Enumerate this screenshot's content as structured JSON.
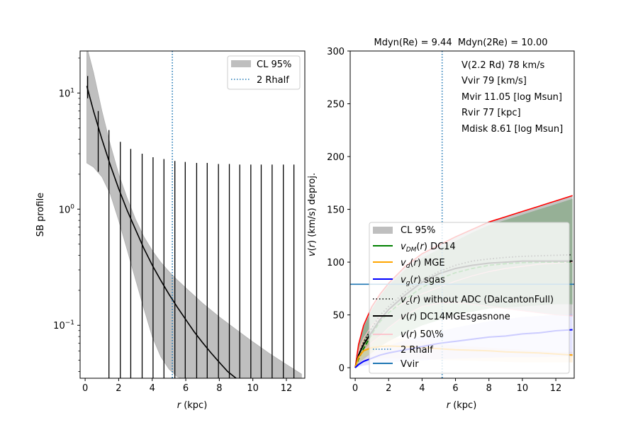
{
  "chart_data": [
    {
      "type": "line",
      "panel": "left",
      "title": "",
      "xlabel": "r (kpc)",
      "xlabel_italic_part": "r",
      "ylabel": "SB profile",
      "yscale": "log",
      "xlim": [
        -0.3,
        13.1
      ],
      "ylim": [
        0.035,
        23
      ],
      "xticks": [
        0,
        2,
        4,
        6,
        8,
        10,
        12
      ],
      "yticks": [
        {
          "value": 10,
          "base": "10",
          "exp": "1"
        },
        {
          "value": 1,
          "base": "10",
          "exp": "0"
        },
        {
          "value": 0.1,
          "base": "10",
          "exp": "−1"
        }
      ],
      "legend": {
        "position": "top-right",
        "entries": [
          {
            "label": "CL 95%",
            "style": "patch",
            "color": "#bfbfbf"
          },
          {
            "label": "2 Rhalf",
            "style": "dotted",
            "color": "#1f77b4"
          }
        ]
      },
      "model": {
        "name": "SB model",
        "color": "#000000",
        "x": [
          0.1,
          0.5,
          1.0,
          1.5,
          2.0,
          2.5,
          3.0,
          3.5,
          4.0,
          4.5,
          5.0,
          5.5,
          6.0,
          6.5,
          7.0,
          7.5,
          8.0,
          8.5,
          9.0,
          9.2
        ],
        "y": [
          11.5,
          7.0,
          4.0,
          2.4,
          1.5,
          0.98,
          0.67,
          0.46,
          0.33,
          0.245,
          0.185,
          0.143,
          0.112,
          0.088,
          0.071,
          0.058,
          0.048,
          0.04,
          0.035,
          0.033
        ]
      },
      "band": {
        "name": "CL 95%",
        "color": "#bfbfbf",
        "x": [
          0.1,
          0.5,
          1.0,
          1.5,
          2.0,
          2.5,
          3.0,
          3.5,
          4.0,
          4.5,
          5.0,
          5.5,
          6.0,
          7.0,
          8.0,
          9.0,
          10.0,
          11.0,
          12.0,
          12.9
        ],
        "upper": [
          25,
          15,
          7.0,
          3.6,
          2.0,
          1.25,
          0.82,
          0.58,
          0.44,
          0.35,
          0.29,
          0.245,
          0.21,
          0.155,
          0.118,
          0.092,
          0.072,
          0.057,
          0.046,
          0.038
        ],
        "lower": [
          2.5,
          2.3,
          1.9,
          1.35,
          0.8,
          0.45,
          0.25,
          0.14,
          0.08,
          0.054,
          0.042,
          0.036,
          0.034,
          0.034,
          0.034,
          0.034,
          0.034,
          0.034,
          0.034,
          0.034
        ]
      },
      "errorbars": {
        "name": "data error bars",
        "color": "#000000",
        "x": [
          0.15,
          0.78,
          1.42,
          2.1,
          2.72,
          3.4,
          4.05,
          4.7,
          5.35,
          5.97,
          6.65,
          7.28,
          7.95,
          8.6,
          9.22,
          9.88,
          10.5,
          11.15,
          11.82,
          12.45
        ],
        "upper": [
          14,
          7.0,
          4.8,
          3.8,
          3.3,
          3.0,
          2.8,
          2.7,
          2.6,
          2.55,
          2.5,
          2.5,
          2.45,
          2.45,
          2.42,
          2.42,
          2.42,
          2.42,
          2.42,
          2.42
        ],
        "lower": [
          9,
          2.1,
          0.035,
          0.035,
          0.035,
          0.035,
          0.035,
          0.035,
          0.035,
          0.035,
          0.035,
          0.035,
          0.035,
          0.035,
          0.035,
          0.035,
          0.035,
          0.035,
          0.035,
          0.035
        ]
      },
      "vline": {
        "name": "2 Rhalf",
        "x": 5.2,
        "color": "#1f77b4",
        "style": "dotted"
      }
    },
    {
      "type": "line",
      "panel": "right",
      "title": "Mdyn(Re) = 9.44  Mdyn(2Re) = 10.00",
      "xlabel": "r (kpc)",
      "xlabel_italic_part": "r",
      "ylabel": "v(r) (km/s) deproj.",
      "xlim": [
        -0.3,
        13.1
      ],
      "ylim": [
        -10,
        300
      ],
      "xticks": [
        0,
        2,
        4,
        6,
        8,
        10,
        12
      ],
      "yticks": [
        0,
        50,
        100,
        150,
        200,
        250,
        300
      ],
      "annotations": [
        "V(2.2 Rd) 78 km/s",
        "Vvir 79 [km/s]",
        "Mvir 11.05 [log Msun]",
        "Rvir 77 [kpc]",
        "Mdisk 8.61 [log Msun]"
      ],
      "legend": {
        "position": "lower-center",
        "entries": [
          {
            "label": "CL 95%",
            "style": "patch",
            "color": "#bfbfbf"
          },
          {
            "label": "DC14",
            "math": "v",
            "sub": "DM",
            "style": "solid",
            "color": "#008000"
          },
          {
            "label": "MGE",
            "math": "v",
            "sub": "d",
            "style": "solid",
            "color": "#ffa500"
          },
          {
            "label": "sgas",
            "math": "v",
            "sub": "g",
            "style": "solid",
            "color": "#0000ff"
          },
          {
            "label": "without ADC (DalcantonFull)",
            "math": "v",
            "sub": "c",
            "style": "dotted",
            "color": "#000000"
          },
          {
            "label": "DC14MGEsgasnone",
            "math": "v",
            "sub": "",
            "style": "solid",
            "color": "#000000"
          },
          {
            "label": "50\\%",
            "math": "v",
            "sub": "",
            "style": "solid",
            "color": "#ffb6c1"
          },
          {
            "label": "2 Rhalf",
            "style": "dotted",
            "color": "#1f77b4"
          },
          {
            "label": "Vvir",
            "style": "solid",
            "color": "#1f77b4"
          }
        ]
      },
      "x": [
        0,
        0.2,
        0.5,
        1,
        1.5,
        2,
        3,
        4,
        5,
        6,
        7,
        8,
        9,
        10,
        11,
        12,
        13
      ],
      "series": [
        {
          "name": "v(r) upper CL",
          "color": "#ff0000",
          "values": [
            0,
            22,
            40,
            58,
            70,
            80,
            96,
            108,
            116,
            124,
            131,
            138,
            143,
            148,
            153,
            158,
            163
          ]
        },
        {
          "name": "v(r) 50%",
          "color": "#ffb6c1",
          "values": [
            0,
            15,
            28,
            40,
            48,
            54,
            62,
            70,
            76,
            82,
            87,
            91,
            94,
            96,
            98,
            99,
            100
          ]
        },
        {
          "name": "v(r) lower CL",
          "color": "#ffb6c1",
          "values": [
            0,
            8,
            16,
            24,
            30,
            38,
            50,
            58,
            61,
            62,
            60,
            58,
            56,
            54,
            52,
            50,
            49
          ]
        },
        {
          "name": "v_DM(r) DC14",
          "color": "#008000",
          "values": [
            0,
            8,
            18,
            32,
            44,
            52,
            65,
            76,
            84,
            90,
            94,
            97,
            98.5,
            99.5,
            100,
            100,
            100
          ]
        },
        {
          "name": "v_c(r) without ADC",
          "color": "#000000",
          "values": [
            0,
            12,
            24,
            38,
            50,
            58,
            72,
            83,
            91,
            97,
            101,
            103,
            104.5,
            105.5,
            106,
            106.5,
            107
          ]
        },
        {
          "name": "v(r) DC14MGEsgasnone",
          "color": "#000000",
          "values": [
            0,
            12,
            22,
            34,
            46,
            55,
            69,
            81,
            89,
            94,
            97,
            99,
            100,
            101,
            101,
            101,
            101
          ]
        },
        {
          "name": "v_d(r) MGE",
          "color": "#ffa500",
          "values": [
            0,
            10,
            16,
            19,
            20,
            20.5,
            20,
            19,
            18,
            17,
            16.5,
            16,
            15,
            14.5,
            14,
            13,
            12
          ]
        },
        {
          "name": "v_g(r) sgas",
          "color": "#0000ff",
          "values": [
            0,
            3,
            6,
            9,
            12,
            14,
            17,
            20,
            23,
            25,
            27,
            29,
            30,
            32,
            33,
            35,
            36
          ]
        }
      ],
      "dm_band_upper": [
        0,
        20,
        38,
        55,
        68,
        78,
        93,
        104,
        112,
        120,
        128,
        135,
        140,
        145,
        150,
        155,
        160
      ],
      "dm_band_lower": [
        0,
        4,
        8,
        14,
        20,
        25,
        33,
        40,
        45,
        50,
        53,
        56,
        57,
        58,
        59,
        60,
        60
      ],
      "gas_band_upper": [
        0,
        5,
        10,
        14,
        18,
        21,
        26,
        30,
        34,
        38,
        41,
        44,
        46,
        48,
        49,
        50,
        51
      ],
      "gas_band_lower": [
        0,
        1,
        2,
        3,
        4,
        5,
        6,
        7,
        8,
        8.5,
        9,
        9.5,
        10,
        10,
        10,
        10.5,
        11
      ],
      "disk_band_upper": [
        0,
        20,
        28,
        30,
        30,
        29,
        27,
        25,
        23,
        21,
        20,
        19,
        18,
        17,
        16,
        15,
        15
      ],
      "disk_band_lower": [
        0,
        3,
        6,
        8,
        9,
        9,
        8.5,
        8,
        7.5,
        7,
        6.5,
        6,
        5.5,
        5,
        5,
        5,
        5
      ],
      "vlines": [
        {
          "name": "2 Rhalf",
          "x": 5.2,
          "color": "#1f77b4",
          "style": "dotted"
        }
      ],
      "hlines": [
        {
          "name": "Vvir",
          "y": 79,
          "color": "#1f77b4",
          "style": "solid"
        }
      ]
    }
  ]
}
